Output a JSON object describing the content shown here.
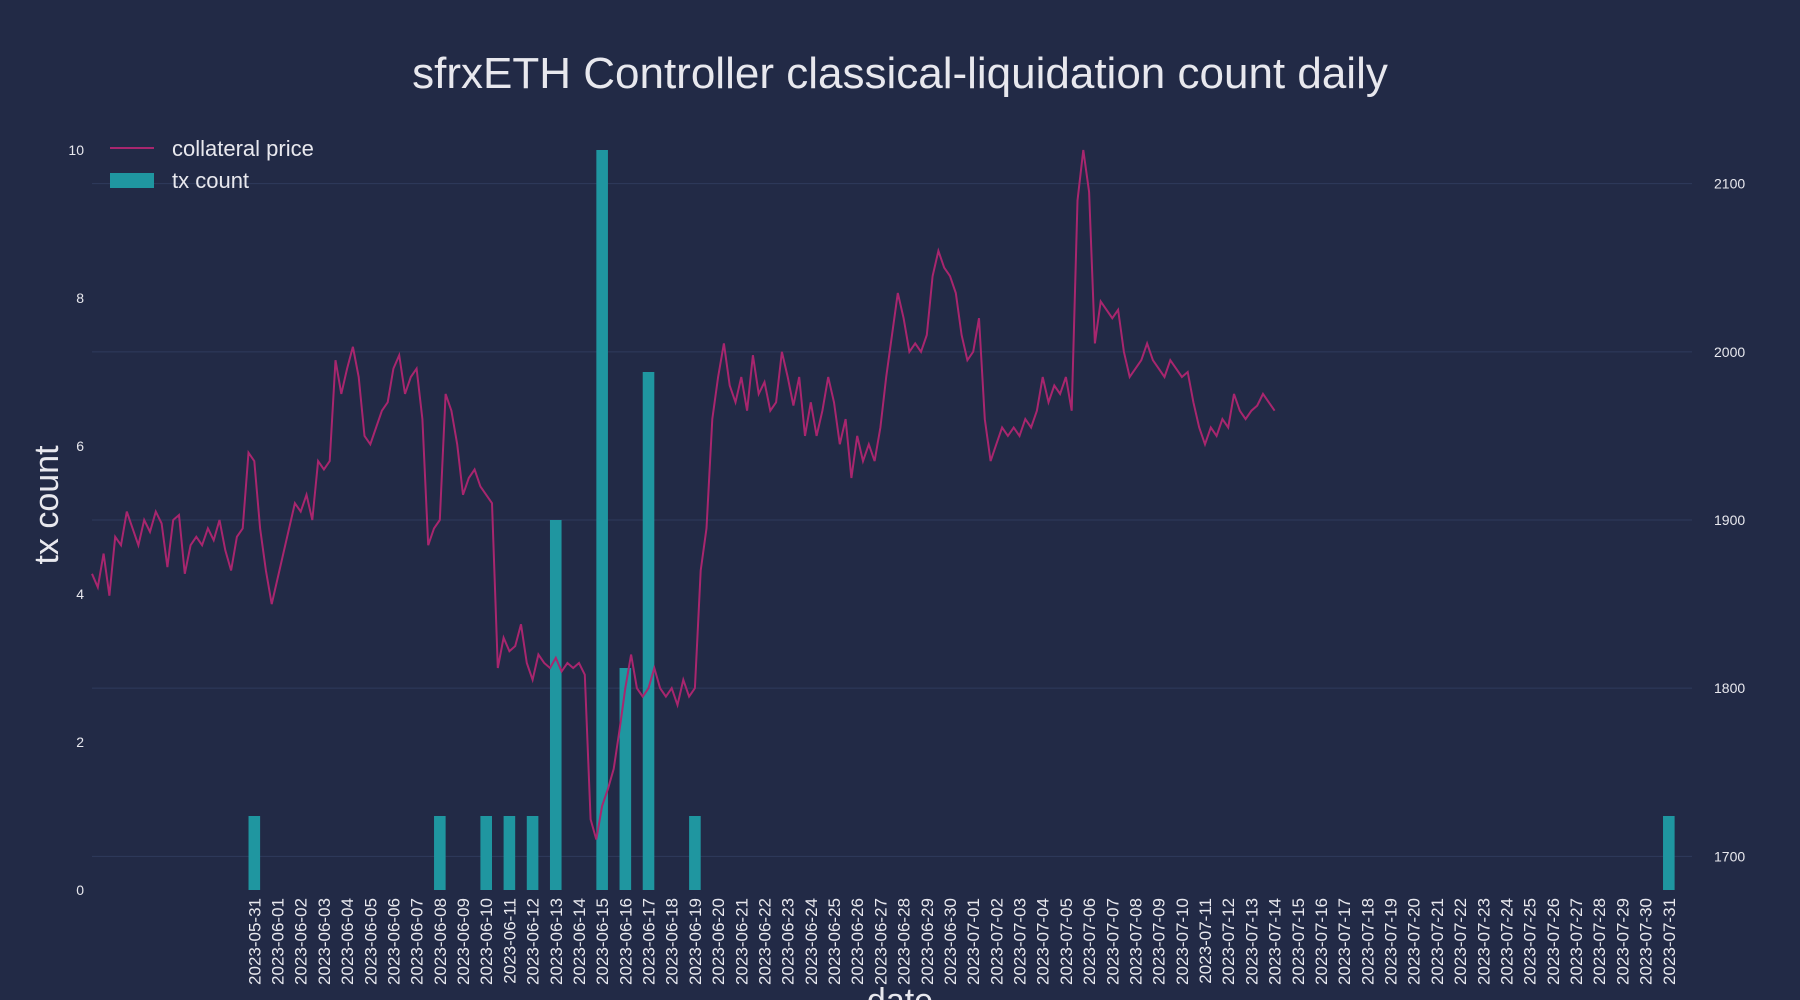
{
  "colors": {
    "background": "#222a46",
    "bar": "#1f96a0",
    "line": "#a8266e",
    "grid": "#2f3a5c",
    "text": "#e8e8ee"
  },
  "chart_data": {
    "type": "bar+line",
    "title": "sfrxETH Controller classical-liquidation count daily",
    "xlabel": "date",
    "ylabel_left": "tx count",
    "ylabel_right": "",
    "grid": true,
    "legend_position": "top-left",
    "y_left_range": [
      0,
      10
    ],
    "y_right_range": [
      1680,
      2120
    ],
    "y_left_ticks": [
      0,
      2,
      4,
      6,
      8,
      10
    ],
    "y_right_ticks": [
      1700,
      1800,
      1900,
      2000,
      2100
    ],
    "x_range": [
      "2023-05-24",
      "2023-08-01"
    ],
    "x_tick_labels": [
      "2023-05-31",
      "2023-06-01",
      "2023-06-02",
      "2023-06-03",
      "2023-06-04",
      "2023-06-05",
      "2023-06-06",
      "2023-06-07",
      "2023-06-08",
      "2023-06-09",
      "2023-06-10",
      "2023-06-11",
      "2023-06-12",
      "2023-06-13",
      "2023-06-14",
      "2023-06-15",
      "2023-06-16",
      "2023-06-17",
      "2023-06-18",
      "2023-06-19",
      "2023-06-20",
      "2023-06-21",
      "2023-06-22",
      "2023-06-23",
      "2023-06-24",
      "2023-06-25",
      "2023-06-26",
      "2023-06-27",
      "2023-06-28",
      "2023-06-29",
      "2023-06-30",
      "2023-07-01",
      "2023-07-02",
      "2023-07-03",
      "2023-07-04",
      "2023-07-05",
      "2023-07-06",
      "2023-07-07",
      "2023-07-08",
      "2023-07-09",
      "2023-07-10",
      "2023-07-11",
      "2023-07-12",
      "2023-07-13",
      "2023-07-14",
      "2023-07-15",
      "2023-07-16",
      "2023-07-17",
      "2023-07-18",
      "2023-07-19",
      "2023-07-20",
      "2023-07-21",
      "2023-07-22",
      "2023-07-23",
      "2023-07-24",
      "2023-07-25",
      "2023-07-26",
      "2023-07-27",
      "2023-07-28",
      "2023-07-29",
      "2023-07-30",
      "2023-07-31"
    ],
    "series": [
      {
        "name": "tx count",
        "kind": "bar",
        "points": [
          {
            "date": "2023-05-31",
            "value": 1
          },
          {
            "date": "2023-06-08",
            "value": 1
          },
          {
            "date": "2023-06-10",
            "value": 1
          },
          {
            "date": "2023-06-11",
            "value": 1
          },
          {
            "date": "2023-06-12",
            "value": 1
          },
          {
            "date": "2023-06-13",
            "value": 5
          },
          {
            "date": "2023-06-15",
            "value": 10
          },
          {
            "date": "2023-06-16",
            "value": 3
          },
          {
            "date": "2023-06-17",
            "value": 7
          },
          {
            "date": "2023-06-19",
            "value": 1
          },
          {
            "date": "2023-07-31",
            "value": 1
          }
        ]
      },
      {
        "name": "collateral price",
        "kind": "line",
        "points": [
          [
            "2023-05-24T00:00",
            1868
          ],
          [
            "2023-05-24T06:00",
            1860
          ],
          [
            "2023-05-24T12:00",
            1880
          ],
          [
            "2023-05-24T18:00",
            1855
          ],
          [
            "2023-05-25T00:00",
            1890
          ],
          [
            "2023-05-25T06:00",
            1885
          ],
          [
            "2023-05-25T12:00",
            1905
          ],
          [
            "2023-05-25T18:00",
            1895
          ],
          [
            "2023-05-26T00:00",
            1885
          ],
          [
            "2023-05-26T06:00",
            1900
          ],
          [
            "2023-05-26T12:00",
            1893
          ],
          [
            "2023-05-26T18:00",
            1905
          ],
          [
            "2023-05-27T00:00",
            1898
          ],
          [
            "2023-05-27T06:00",
            1872
          ],
          [
            "2023-05-27T12:00",
            1900
          ],
          [
            "2023-05-27T18:00",
            1903
          ],
          [
            "2023-05-28T00:00",
            1868
          ],
          [
            "2023-05-28T06:00",
            1885
          ],
          [
            "2023-05-28T12:00",
            1890
          ],
          [
            "2023-05-28T18:00",
            1885
          ],
          [
            "2023-05-29T00:00",
            1895
          ],
          [
            "2023-05-29T06:00",
            1888
          ],
          [
            "2023-05-29T12:00",
            1900
          ],
          [
            "2023-05-29T18:00",
            1882
          ],
          [
            "2023-05-30T00:00",
            1870
          ],
          [
            "2023-05-30T06:00",
            1890
          ],
          [
            "2023-05-30T12:00",
            1895
          ],
          [
            "2023-05-30T18:00",
            1940
          ],
          [
            "2023-05-31T00:00",
            1935
          ],
          [
            "2023-05-31T06:00",
            1895
          ],
          [
            "2023-05-31T12:00",
            1870
          ],
          [
            "2023-05-31T18:00",
            1850
          ],
          [
            "2023-06-01T00:00",
            1865
          ],
          [
            "2023-06-01T06:00",
            1880
          ],
          [
            "2023-06-01T12:00",
            1895
          ],
          [
            "2023-06-01T18:00",
            1910
          ],
          [
            "2023-06-02T00:00",
            1905
          ],
          [
            "2023-06-02T06:00",
            1915
          ],
          [
            "2023-06-02T12:00",
            1900
          ],
          [
            "2023-06-02T18:00",
            1935
          ],
          [
            "2023-06-03T00:00",
            1930
          ],
          [
            "2023-06-03T06:00",
            1935
          ],
          [
            "2023-06-03T12:00",
            1995
          ],
          [
            "2023-06-03T18:00",
            1975
          ],
          [
            "2023-06-04T00:00",
            1990
          ],
          [
            "2023-06-04T06:00",
            2003
          ],
          [
            "2023-06-04T12:00",
            1985
          ],
          [
            "2023-06-04T18:00",
            1950
          ],
          [
            "2023-06-05T00:00",
            1945
          ],
          [
            "2023-06-05T06:00",
            1955
          ],
          [
            "2023-06-05T12:00",
            1965
          ],
          [
            "2023-06-05T18:00",
            1970
          ],
          [
            "2023-06-06T00:00",
            1990
          ],
          [
            "2023-06-06T06:00",
            1998
          ],
          [
            "2023-06-06T12:00",
            1975
          ],
          [
            "2023-06-06T18:00",
            1985
          ],
          [
            "2023-06-07T00:00",
            1990
          ],
          [
            "2023-06-07T06:00",
            1960
          ],
          [
            "2023-06-07T12:00",
            1885
          ],
          [
            "2023-06-07T18:00",
            1895
          ],
          [
            "2023-06-08T00:00",
            1900
          ],
          [
            "2023-06-08T06:00",
            1975
          ],
          [
            "2023-06-08T12:00",
            1965
          ],
          [
            "2023-06-08T18:00",
            1945
          ],
          [
            "2023-06-09T00:00",
            1915
          ],
          [
            "2023-06-09T06:00",
            1925
          ],
          [
            "2023-06-09T12:00",
            1930
          ],
          [
            "2023-06-09T18:00",
            1920
          ],
          [
            "2023-06-10T00:00",
            1915
          ],
          [
            "2023-06-10T06:00",
            1910
          ],
          [
            "2023-06-10T12:00",
            1812
          ],
          [
            "2023-06-10T18:00",
            1830
          ],
          [
            "2023-06-11T00:00",
            1822
          ],
          [
            "2023-06-11T06:00",
            1825
          ],
          [
            "2023-06-11T12:00",
            1838
          ],
          [
            "2023-06-11T18:00",
            1815
          ],
          [
            "2023-06-12T00:00",
            1805
          ],
          [
            "2023-06-12T06:00",
            1820
          ],
          [
            "2023-06-12T12:00",
            1815
          ],
          [
            "2023-06-12T18:00",
            1812
          ],
          [
            "2023-06-13T00:00",
            1818
          ],
          [
            "2023-06-13T06:00",
            1810
          ],
          [
            "2023-06-13T12:00",
            1815
          ],
          [
            "2023-06-13T18:00",
            1812
          ],
          [
            "2023-06-14T00:00",
            1815
          ],
          [
            "2023-06-14T06:00",
            1808
          ],
          [
            "2023-06-14T12:00",
            1722
          ],
          [
            "2023-06-14T18:00",
            1710
          ],
          [
            "2023-06-15T00:00",
            1730
          ],
          [
            "2023-06-15T06:00",
            1740
          ],
          [
            "2023-06-15T12:00",
            1752
          ],
          [
            "2023-06-15T18:00",
            1775
          ],
          [
            "2023-06-16T00:00",
            1800
          ],
          [
            "2023-06-16T06:00",
            1820
          ],
          [
            "2023-06-16T12:00",
            1800
          ],
          [
            "2023-06-16T18:00",
            1795
          ],
          [
            "2023-06-17T00:00",
            1800
          ],
          [
            "2023-06-17T06:00",
            1812
          ],
          [
            "2023-06-17T12:00",
            1800
          ],
          [
            "2023-06-17T18:00",
            1795
          ],
          [
            "2023-06-18T00:00",
            1800
          ],
          [
            "2023-06-18T06:00",
            1790
          ],
          [
            "2023-06-18T12:00",
            1805
          ],
          [
            "2023-06-18T18:00",
            1795
          ],
          [
            "2023-06-19T00:00",
            1800
          ],
          [
            "2023-06-19T06:00",
            1870
          ],
          [
            "2023-06-19T12:00",
            1895
          ],
          [
            "2023-06-19T18:00",
            1960
          ],
          [
            "2023-06-20T00:00",
            1985
          ],
          [
            "2023-06-20T06:00",
            2005
          ],
          [
            "2023-06-20T12:00",
            1980
          ],
          [
            "2023-06-20T18:00",
            1970
          ],
          [
            "2023-06-21T00:00",
            1985
          ],
          [
            "2023-06-21T06:00",
            1965
          ],
          [
            "2023-06-21T12:00",
            1998
          ],
          [
            "2023-06-21T18:00",
            1975
          ],
          [
            "2023-06-22T00:00",
            1982
          ],
          [
            "2023-06-22T06:00",
            1965
          ],
          [
            "2023-06-22T12:00",
            1970
          ],
          [
            "2023-06-22T18:00",
            2000
          ],
          [
            "2023-06-23T00:00",
            1985
          ],
          [
            "2023-06-23T06:00",
            1968
          ],
          [
            "2023-06-23T12:00",
            1985
          ],
          [
            "2023-06-23T18:00",
            1950
          ],
          [
            "2023-06-24T00:00",
            1970
          ],
          [
            "2023-06-24T06:00",
            1950
          ],
          [
            "2023-06-24T12:00",
            1965
          ],
          [
            "2023-06-24T18:00",
            1985
          ],
          [
            "2023-06-25T00:00",
            1970
          ],
          [
            "2023-06-25T06:00",
            1945
          ],
          [
            "2023-06-25T12:00",
            1960
          ],
          [
            "2023-06-25T18:00",
            1925
          ],
          [
            "2023-06-26T00:00",
            1950
          ],
          [
            "2023-06-26T06:00",
            1935
          ],
          [
            "2023-06-26T12:00",
            1945
          ],
          [
            "2023-06-26T18:00",
            1935
          ],
          [
            "2023-06-27T00:00",
            1955
          ],
          [
            "2023-06-27T06:00",
            1985
          ],
          [
            "2023-06-27T12:00",
            2010
          ],
          [
            "2023-06-27T18:00",
            2035
          ],
          [
            "2023-06-28T00:00",
            2020
          ],
          [
            "2023-06-28T06:00",
            2000
          ],
          [
            "2023-06-28T12:00",
            2005
          ],
          [
            "2023-06-28T18:00",
            2000
          ],
          [
            "2023-06-29T00:00",
            2010
          ],
          [
            "2023-06-29T06:00",
            2045
          ],
          [
            "2023-06-29T12:00",
            2060
          ],
          [
            "2023-06-29T18:00",
            2050
          ],
          [
            "2023-06-30T00:00",
            2045
          ],
          [
            "2023-06-30T06:00",
            2035
          ],
          [
            "2023-06-30T12:00",
            2010
          ],
          [
            "2023-06-30T18:00",
            1995
          ],
          [
            "2023-07-01T00:00",
            2000
          ],
          [
            "2023-07-01T06:00",
            2020
          ],
          [
            "2023-07-01T12:00",
            1960
          ],
          [
            "2023-07-01T18:00",
            1935
          ],
          [
            "2023-07-02T00:00",
            1945
          ],
          [
            "2023-07-02T06:00",
            1955
          ],
          [
            "2023-07-02T12:00",
            1950
          ],
          [
            "2023-07-02T18:00",
            1955
          ],
          [
            "2023-07-03T00:00",
            1950
          ],
          [
            "2023-07-03T06:00",
            1960
          ],
          [
            "2023-07-03T12:00",
            1955
          ],
          [
            "2023-07-03T18:00",
            1965
          ],
          [
            "2023-07-04T00:00",
            1985
          ],
          [
            "2023-07-04T06:00",
            1970
          ],
          [
            "2023-07-04T12:00",
            1980
          ],
          [
            "2023-07-04T18:00",
            1975
          ],
          [
            "2023-07-05T00:00",
            1985
          ],
          [
            "2023-07-05T06:00",
            1965
          ],
          [
            "2023-07-05T12:00",
            2090
          ],
          [
            "2023-07-05T18:00",
            2120
          ],
          [
            "2023-07-06T00:00",
            2095
          ],
          [
            "2023-07-06T06:00",
            2005
          ],
          [
            "2023-07-06T12:00",
            2030
          ],
          [
            "2023-07-06T18:00",
            2025
          ],
          [
            "2023-07-07T00:00",
            2020
          ],
          [
            "2023-07-07T06:00",
            2025
          ],
          [
            "2023-07-07T12:00",
            2000
          ],
          [
            "2023-07-07T18:00",
            1985
          ],
          [
            "2023-07-08T00:00",
            1990
          ],
          [
            "2023-07-08T06:00",
            1995
          ],
          [
            "2023-07-08T12:00",
            2005
          ],
          [
            "2023-07-08T18:00",
            1995
          ],
          [
            "2023-07-09T00:00",
            1990
          ],
          [
            "2023-07-09T06:00",
            1985
          ],
          [
            "2023-07-09T12:00",
            1995
          ],
          [
            "2023-07-09T18:00",
            1990
          ],
          [
            "2023-07-10T00:00",
            1985
          ],
          [
            "2023-07-10T06:00",
            1988
          ],
          [
            "2023-07-10T12:00",
            1970
          ],
          [
            "2023-07-10T18:00",
            1955
          ],
          [
            "2023-07-11T00:00",
            1945
          ],
          [
            "2023-07-11T06:00",
            1955
          ],
          [
            "2023-07-11T12:00",
            1950
          ],
          [
            "2023-07-11T18:00",
            1960
          ],
          [
            "2023-07-12T00:00",
            1955
          ],
          [
            "2023-07-12T06:00",
            1975
          ],
          [
            "2023-07-12T12:00",
            1965
          ],
          [
            "2023-07-12T18:00",
            1960
          ],
          [
            "2023-07-13T00:00",
            1965
          ],
          [
            "2023-07-13T06:00",
            1968
          ],
          [
            "2023-07-13T12:00",
            1975
          ],
          [
            "2023-07-13T18:00",
            1970
          ],
          [
            "2023-07-14T00:00",
            1965
          ]
        ]
      }
    ]
  }
}
